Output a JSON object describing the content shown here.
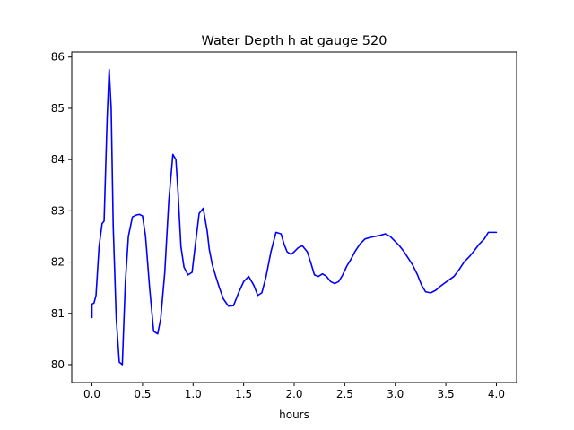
{
  "chart_data": {
    "type": "line",
    "title": "Water Depth h at gauge 520",
    "xlabel": "hours",
    "ylabel": "",
    "xlim": [
      -0.2,
      4.2
    ],
    "ylim": [
      79.65,
      86.1
    ],
    "xticks": [
      0.0,
      0.5,
      1.0,
      1.5,
      2.0,
      2.5,
      3.0,
      3.5,
      4.0
    ],
    "xtick_labels": [
      "0.0",
      "0.5",
      "1.0",
      "1.5",
      "2.0",
      "2.5",
      "3.0",
      "3.5",
      "4.0"
    ],
    "yticks": [
      80,
      81,
      82,
      83,
      84,
      85,
      86
    ],
    "ytick_labels": [
      "80",
      "81",
      "82",
      "83",
      "84",
      "85",
      "86"
    ],
    "grid": false,
    "legend": false,
    "series": [
      {
        "color": "#0000ff",
        "x": [
          0.0,
          0.0,
          0.02,
          0.04,
          0.07,
          0.1,
          0.12,
          0.15,
          0.17,
          0.19,
          0.21,
          0.24,
          0.27,
          0.3,
          0.33,
          0.36,
          0.4,
          0.44,
          0.47,
          0.5,
          0.53,
          0.57,
          0.61,
          0.65,
          0.68,
          0.72,
          0.76,
          0.8,
          0.83,
          0.85,
          0.88,
          0.91,
          0.95,
          0.99,
          1.02,
          1.06,
          1.1,
          1.14,
          1.16,
          1.19,
          1.22,
          1.26,
          1.3,
          1.35,
          1.4,
          1.45,
          1.5,
          1.55,
          1.6,
          1.64,
          1.68,
          1.72,
          1.77,
          1.82,
          1.87,
          1.9,
          1.93,
          1.97,
          2.0,
          2.04,
          2.08,
          2.13,
          2.17,
          2.2,
          2.24,
          2.28,
          2.32,
          2.36,
          2.4,
          2.44,
          2.48,
          2.52,
          2.56,
          2.6,
          2.65,
          2.7,
          2.75,
          2.8,
          2.85,
          2.9,
          2.95,
          3.0,
          3.04,
          3.08,
          3.12,
          3.17,
          3.22,
          3.26,
          3.3,
          3.35,
          3.4,
          3.44,
          3.48,
          3.53,
          3.58,
          3.63,
          3.68,
          3.73,
          3.78,
          3.83,
          3.88,
          3.92,
          3.96,
          4.0
        ],
        "y": [
          80.92,
          81.18,
          81.2,
          81.35,
          82.3,
          82.75,
          82.8,
          84.8,
          85.76,
          85.0,
          82.7,
          80.9,
          80.05,
          80.0,
          81.6,
          82.5,
          82.88,
          82.92,
          82.93,
          82.9,
          82.5,
          81.5,
          80.65,
          80.6,
          80.9,
          81.8,
          83.2,
          84.1,
          84.0,
          83.4,
          82.3,
          81.9,
          81.75,
          81.8,
          82.3,
          82.95,
          83.05,
          82.6,
          82.25,
          81.95,
          81.75,
          81.5,
          81.28,
          81.14,
          81.15,
          81.4,
          81.62,
          81.72,
          81.55,
          81.35,
          81.4,
          81.7,
          82.2,
          82.58,
          82.55,
          82.35,
          82.2,
          82.15,
          82.2,
          82.28,
          82.32,
          82.2,
          81.95,
          81.75,
          81.72,
          81.77,
          81.72,
          81.62,
          81.58,
          81.62,
          81.75,
          81.92,
          82.05,
          82.2,
          82.35,
          82.45,
          82.48,
          82.5,
          82.52,
          82.55,
          82.5,
          82.4,
          82.32,
          82.22,
          82.1,
          81.95,
          81.75,
          81.55,
          81.42,
          81.4,
          81.45,
          81.52,
          81.58,
          81.65,
          81.72,
          81.85,
          82.0,
          82.1,
          82.22,
          82.35,
          82.45,
          82.58,
          82.58,
          82.58
        ]
      }
    ]
  }
}
